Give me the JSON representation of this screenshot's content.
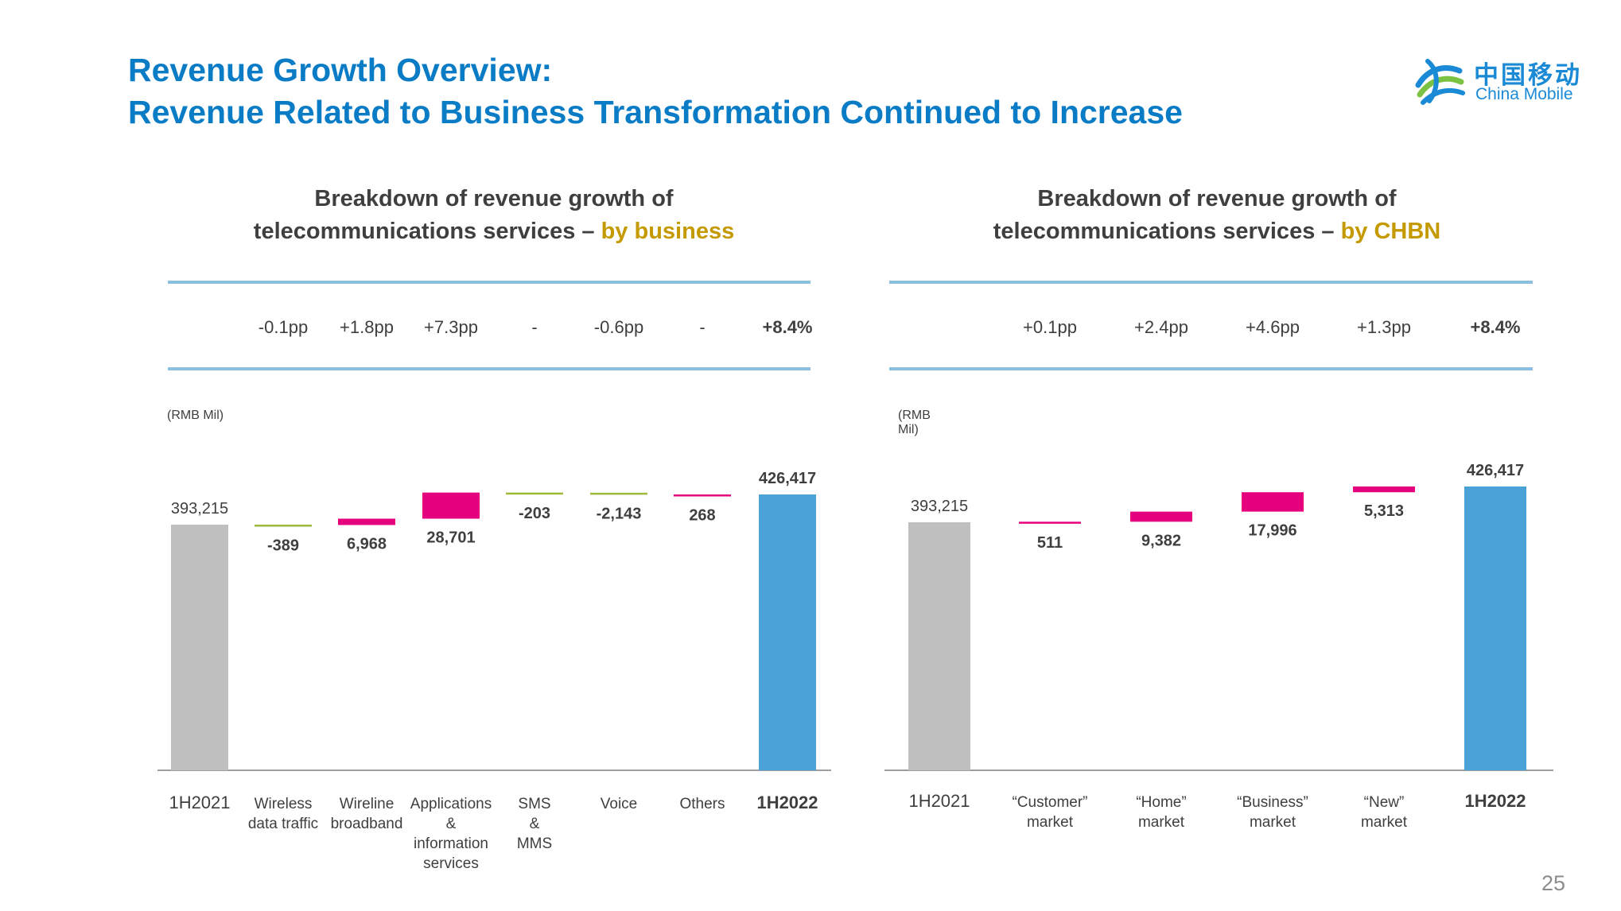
{
  "header": {
    "title_line1": "Revenue Growth Overview:",
    "title_line2": "Revenue Related to Business Transformation Continued to Increase"
  },
  "logo": {
    "icon": "china-mobile-logo-icon",
    "cn_text": "中国移动",
    "en_text": "China Mobile"
  },
  "page_number": "25",
  "colors": {
    "title": "#0a7cc6",
    "highlight": "#c49a00",
    "positive": "#e5007e",
    "negative": "#9dbb38",
    "start_bar": "#bfbfbf",
    "end_bar": "#4aa2d8",
    "rule": "#8bbfdf"
  },
  "chart_data": [
    {
      "type": "bar",
      "subtype": "waterfall",
      "title_line1": "Breakdown of revenue growth of",
      "title_line2_prefix": "telecommunications services – ",
      "title_line2_highlight": "by business",
      "unit": "(RMB Mil)",
      "categories": [
        "1H2021",
        "Wireless data traffic",
        "Wireline broadband",
        "Applications & information services",
        "SMS & MMS",
        "Voice",
        "Others",
        "1H2022"
      ],
      "category_lines": [
        [
          "1H2021"
        ],
        [
          "Wireless",
          "data traffic"
        ],
        [
          "Wireline",
          "broadband"
        ],
        [
          "Applications",
          "&",
          "information",
          "services"
        ],
        [
          "SMS",
          "&",
          "MMS"
        ],
        [
          "Voice"
        ],
        [
          "Others"
        ],
        [
          "1H2022"
        ]
      ],
      "values": [
        393215,
        -389,
        6968,
        28701,
        -203,
        -2143,
        268,
        426417
      ],
      "value_labels": [
        "393,215",
        "-389",
        "6,968",
        "28,701",
        "-203",
        "-2,143",
        "268",
        "426,417"
      ],
      "kinds": [
        "total",
        "delta",
        "delta",
        "delta",
        "delta",
        "delta",
        "delta",
        "total"
      ],
      "growth_contributions": [
        "",
        "-0.1pp",
        "+1.8pp",
        "+7.3pp",
        "-",
        "-0.6pp",
        "-",
        "+8.4%"
      ]
    },
    {
      "type": "bar",
      "subtype": "waterfall",
      "title_line1": "Breakdown of revenue growth of",
      "title_line2_prefix": "telecommunications services – ",
      "title_line2_highlight": "by CHBN",
      "unit": "(RMB Mil)",
      "categories": [
        "1H2021",
        "“Customer” market",
        "“Home” market",
        "“Business” market",
        "“New” market",
        "1H2022"
      ],
      "category_lines": [
        [
          "1H2021"
        ],
        [
          "“Customer”",
          "market"
        ],
        [
          "“Home”",
          "market"
        ],
        [
          "“Business”",
          "market"
        ],
        [
          "“New”",
          "market"
        ],
        [
          "1H2022"
        ]
      ],
      "values": [
        393215,
        511,
        9382,
        17996,
        5313,
        426417
      ],
      "value_labels": [
        "393,215",
        "511",
        "9,382",
        "17,996",
        "5,313",
        "426,417"
      ],
      "kinds": [
        "total",
        "delta",
        "delta",
        "delta",
        "delta",
        "total"
      ],
      "growth_contributions": [
        "",
        "+0.1pp",
        "+2.4pp",
        "+4.6pp",
        "+1.3pp",
        "+8.4%"
      ]
    }
  ]
}
